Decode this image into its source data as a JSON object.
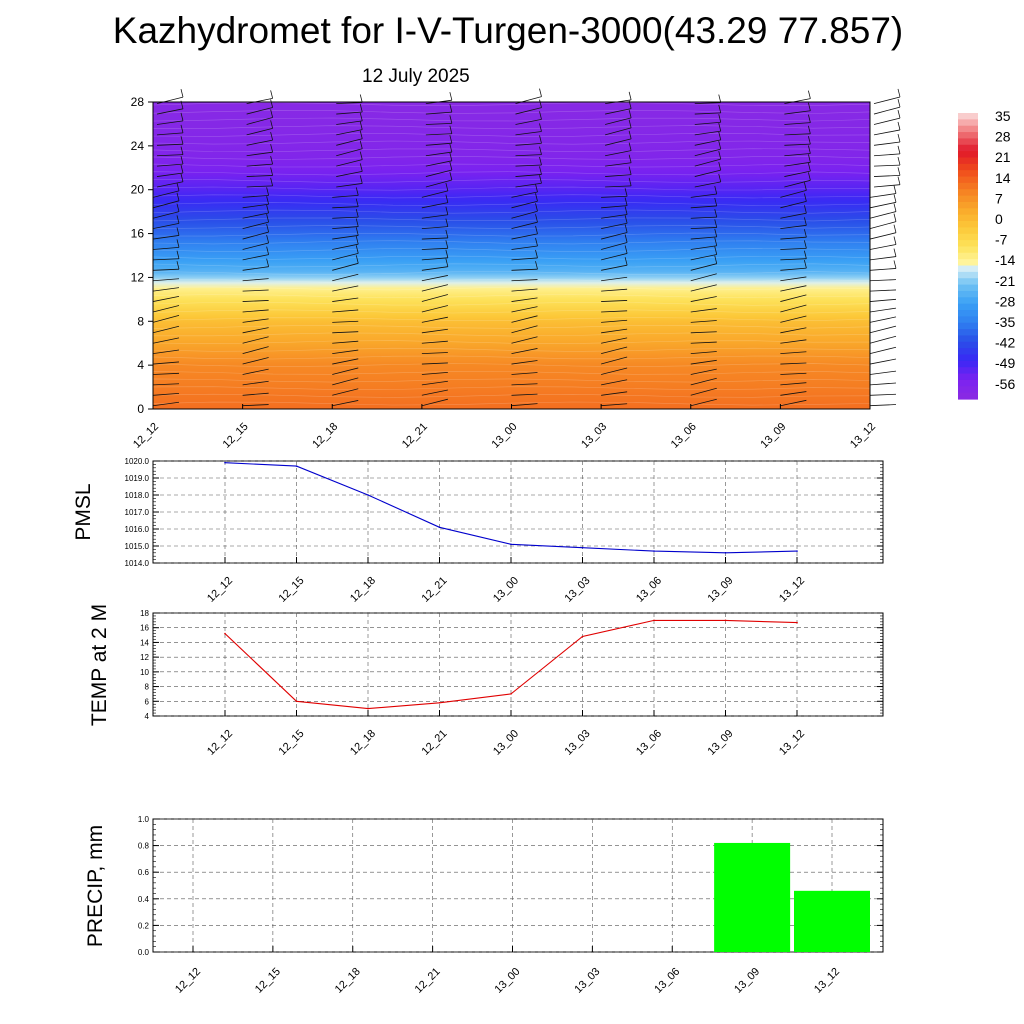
{
  "title": "Kazhydromet for I-V-Turgen-3000(43.29 77.857)",
  "subtitle": "12 July 2025",
  "chart_data": [
    {
      "type": "heatmap",
      "title": "",
      "xlabel": "",
      "ylabel": "",
      "x_ticks": [
        "12_12",
        "12_15",
        "12_18",
        "12_21",
        "13_00",
        "13_03",
        "13_06",
        "13_09",
        "13_12"
      ],
      "y_ticks": [
        0,
        4,
        8,
        12,
        16,
        20,
        24,
        28
      ],
      "ylim": [
        0,
        28
      ],
      "freezing_level_approx": 11.3,
      "wind_barbs": true,
      "colorbar_labels": [
        35,
        28,
        21,
        14,
        7,
        0,
        -7,
        -14,
        -21,
        -28,
        -35,
        -42,
        -49,
        -56
      ],
      "colorbar_range": [
        -63,
        42
      ],
      "colorbar_colors": [
        {
          "value": -63,
          "color": "#8a2be2"
        },
        {
          "value": -56,
          "color": "#7b22f0"
        },
        {
          "value": -49,
          "color": "#3a28f5"
        },
        {
          "value": -42,
          "color": "#2a4ee8"
        },
        {
          "value": -35,
          "color": "#2f7ff0"
        },
        {
          "value": -28,
          "color": "#3aa0f5"
        },
        {
          "value": -21,
          "color": "#70c2f3"
        },
        {
          "value": -15,
          "color": "#d7eef6"
        },
        {
          "value": -14,
          "color": "#fff7a8"
        },
        {
          "value": -7,
          "color": "#fde25a"
        },
        {
          "value": 0,
          "color": "#fcc838"
        },
        {
          "value": 7,
          "color": "#f9a62a"
        },
        {
          "value": 14,
          "color": "#f57d22"
        },
        {
          "value": 21,
          "color": "#f04a1c"
        },
        {
          "value": 28,
          "color": "#e0182a"
        },
        {
          "value": 35,
          "color": "#f0787a"
        },
        {
          "value": 42,
          "color": "#fbdede"
        }
      ],
      "temperature_profile": [
        {
          "level": 0,
          "value": 16
        },
        {
          "level": 4,
          "value": 12
        },
        {
          "level": 8,
          "value": 2
        },
        {
          "level": 11.3,
          "value": -13
        },
        {
          "level": 12.5,
          "value": -24
        },
        {
          "level": 16,
          "value": -38
        },
        {
          "level": 20,
          "value": -52
        },
        {
          "level": 23,
          "value": -59
        },
        {
          "level": 28,
          "value": -62
        }
      ]
    },
    {
      "type": "line",
      "ylabel": "PMSL",
      "x": [
        "12_12",
        "12_15",
        "12_18",
        "12_21",
        "13_00",
        "13_03",
        "13_06",
        "13_09",
        "13_12"
      ],
      "values": [
        1019.9,
        1019.7,
        1018.0,
        1016.1,
        1015.1,
        1014.9,
        1014.7,
        1014.6,
        1014.7
      ],
      "ylim": [
        1014.0,
        1020.0
      ],
      "y_ticks": [
        "1014.0",
        "1015.0",
        "1016.0",
        "1017.0",
        "1018.0",
        "1019.0",
        "1020.0"
      ],
      "color": "#0000cc",
      "grid": true
    },
    {
      "type": "line",
      "ylabel": "TEMP at 2 M",
      "x": [
        "12_12",
        "12_15",
        "12_18",
        "12_21",
        "13_00",
        "13_03",
        "13_06",
        "13_09",
        "13_12"
      ],
      "values": [
        15.2,
        6.0,
        5.0,
        5.8,
        7.0,
        14.8,
        17.0,
        17.0,
        16.7
      ],
      "ylim": [
        4,
        18
      ],
      "y_ticks": [
        "4",
        "6",
        "8",
        "10",
        "12",
        "14",
        "16",
        "18"
      ],
      "color": "#e00000",
      "grid": true
    },
    {
      "type": "bar",
      "ylabel": "PRECIP, mm",
      "categories": [
        "12_12",
        "12_15",
        "12_18",
        "12_21",
        "13_00",
        "13_03",
        "13_06",
        "13_09",
        "13_12"
      ],
      "values": [
        0,
        0,
        0,
        0,
        0,
        0,
        0,
        0.82,
        0.46
      ],
      "ylim": [
        0,
        1.0
      ],
      "y_ticks": [
        "0.0",
        "0.2",
        "0.4",
        "0.6",
        "0.8",
        "1.0"
      ],
      "color": "#00ff00",
      "grid": true
    }
  ]
}
